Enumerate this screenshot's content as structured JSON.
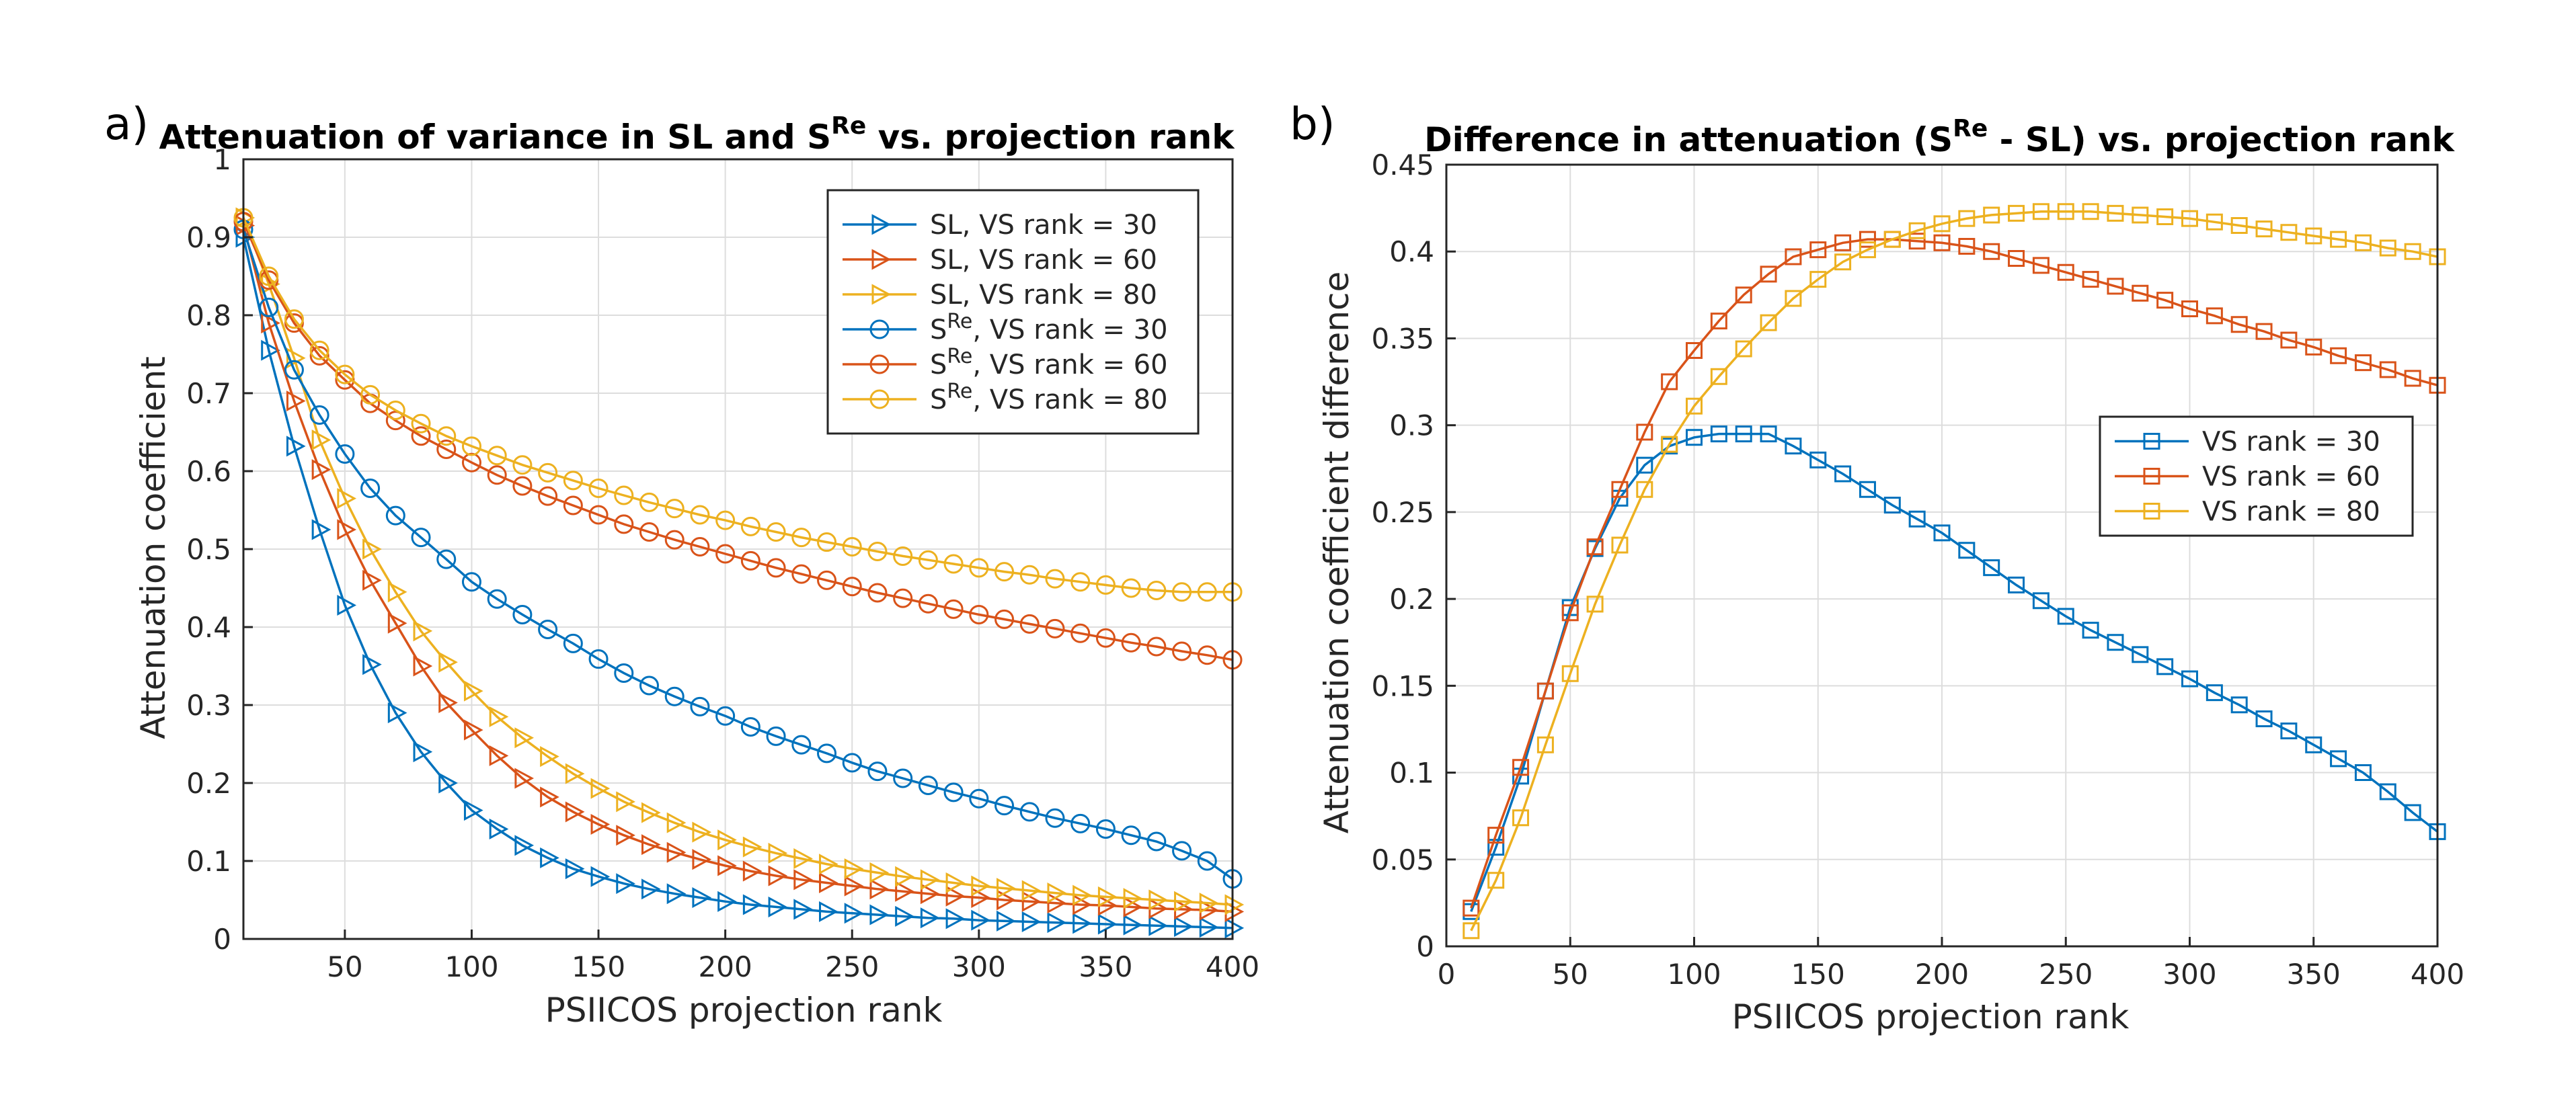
{
  "colors": {
    "blue": "#0072BD",
    "orange": "#D95319",
    "yellow": "#EDB120"
  },
  "panels": [
    {
      "letter": "a)"
    },
    {
      "letter": "b)"
    }
  ],
  "chart_data": [
    {
      "type": "line",
      "title_main": "Attenuation of variance in SL and S",
      "title_sup": "Re",
      "title_tail": " vs. projection rank",
      "xlabel": "PSIICOS projection rank",
      "ylabel": "Attenuation coefficient",
      "xlim": [
        10,
        400
      ],
      "ylim": [
        0,
        1
      ],
      "xticks": [
        "50",
        "100",
        "150",
        "200",
        "250",
        "300",
        "350",
        "400"
      ],
      "yticks": [
        "0",
        "0.1",
        "0.2",
        "0.3",
        "0.4",
        "0.5",
        "0.6",
        "0.7",
        "0.8",
        "0.9",
        "1"
      ],
      "grid": true,
      "legend_position": "top-right",
      "x": [
        10,
        20,
        30,
        40,
        50,
        60,
        70,
        80,
        90,
        100,
        110,
        120,
        130,
        140,
        150,
        160,
        170,
        180,
        190,
        200,
        210,
        220,
        230,
        240,
        250,
        260,
        270,
        280,
        290,
        300,
        310,
        320,
        330,
        340,
        350,
        360,
        370,
        380,
        390,
        400
      ],
      "series": [
        {
          "name": "SL, VS rank = 30",
          "label_main": "SL, VS rank = 30",
          "label_sup": "",
          "label_tail": "",
          "color": "#0072BD",
          "marker": "triangle-right",
          "values": [
            0.9,
            0.755,
            0.632,
            0.525,
            0.428,
            0.352,
            0.29,
            0.24,
            0.2,
            0.165,
            0.141,
            0.12,
            0.104,
            0.09,
            0.08,
            0.071,
            0.064,
            0.058,
            0.053,
            0.048,
            0.044,
            0.041,
            0.038,
            0.035,
            0.033,
            0.031,
            0.029,
            0.027,
            0.026,
            0.024,
            0.023,
            0.022,
            0.021,
            0.02,
            0.019,
            0.018,
            0.017,
            0.016,
            0.015,
            0.014
          ]
        },
        {
          "name": "SL, VS rank = 60",
          "label_main": "SL, VS rank = 60",
          "label_sup": "",
          "label_tail": "",
          "color": "#D95319",
          "marker": "triangle-right",
          "values": [
            0.915,
            0.79,
            0.69,
            0.602,
            0.525,
            0.46,
            0.405,
            0.35,
            0.303,
            0.268,
            0.235,
            0.206,
            0.182,
            0.163,
            0.147,
            0.133,
            0.121,
            0.111,
            0.102,
            0.094,
            0.087,
            0.081,
            0.076,
            0.072,
            0.068,
            0.064,
            0.061,
            0.058,
            0.055,
            0.053,
            0.05,
            0.048,
            0.046,
            0.044,
            0.043,
            0.041,
            0.039,
            0.038,
            0.037,
            0.035
          ]
        },
        {
          "name": "SL, VS rank = 80",
          "label_main": "SL, VS rank = 80",
          "label_sup": "",
          "label_tail": "",
          "color": "#EDB120",
          "marker": "triangle-right",
          "values": [
            0.925,
            0.84,
            0.745,
            0.64,
            0.565,
            0.5,
            0.445,
            0.395,
            0.355,
            0.318,
            0.285,
            0.258,
            0.234,
            0.212,
            0.193,
            0.176,
            0.162,
            0.149,
            0.137,
            0.127,
            0.118,
            0.11,
            0.103,
            0.096,
            0.09,
            0.085,
            0.08,
            0.076,
            0.072,
            0.068,
            0.065,
            0.062,
            0.059,
            0.056,
            0.054,
            0.052,
            0.05,
            0.048,
            0.046,
            0.044
          ]
        },
        {
          "name": "S^Re, VS rank = 30",
          "label_main": "S",
          "label_sup": "Re",
          "label_tail": ", VS rank = 30",
          "color": "#0072BD",
          "marker": "circle",
          "values": [
            0.91,
            0.81,
            0.73,
            0.672,
            0.622,
            0.578,
            0.543,
            0.515,
            0.487,
            0.458,
            0.436,
            0.416,
            0.397,
            0.379,
            0.359,
            0.341,
            0.325,
            0.311,
            0.298,
            0.286,
            0.272,
            0.26,
            0.249,
            0.238,
            0.226,
            0.215,
            0.206,
            0.197,
            0.188,
            0.18,
            0.171,
            0.163,
            0.155,
            0.148,
            0.141,
            0.133,
            0.125,
            0.113,
            0.1,
            0.077
          ]
        },
        {
          "name": "S^Re, VS rank = 60",
          "label_main": "S",
          "label_sup": "Re",
          "label_tail": ", VS rank = 60",
          "color": "#D95319",
          "marker": "circle",
          "values": [
            0.92,
            0.845,
            0.79,
            0.748,
            0.717,
            0.687,
            0.665,
            0.645,
            0.628,
            0.611,
            0.595,
            0.581,
            0.568,
            0.556,
            0.544,
            0.532,
            0.522,
            0.512,
            0.503,
            0.494,
            0.485,
            0.476,
            0.468,
            0.46,
            0.452,
            0.444,
            0.437,
            0.43,
            0.423,
            0.416,
            0.41,
            0.404,
            0.398,
            0.392,
            0.386,
            0.38,
            0.375,
            0.369,
            0.364,
            0.358
          ]
        },
        {
          "name": "S^Re, VS rank = 80",
          "label_main": "S",
          "label_sup": "Re",
          "label_tail": ", VS rank = 80",
          "color": "#EDB120",
          "marker": "circle",
          "values": [
            0.925,
            0.85,
            0.795,
            0.755,
            0.724,
            0.698,
            0.678,
            0.661,
            0.645,
            0.632,
            0.62,
            0.608,
            0.598,
            0.588,
            0.578,
            0.569,
            0.56,
            0.552,
            0.544,
            0.537,
            0.529,
            0.522,
            0.515,
            0.509,
            0.503,
            0.497,
            0.491,
            0.486,
            0.481,
            0.476,
            0.471,
            0.467,
            0.462,
            0.458,
            0.454,
            0.45,
            0.447,
            0.445,
            0.445,
            0.445
          ]
        }
      ]
    },
    {
      "type": "line",
      "title_main": "Difference in attenuation (S",
      "title_sup": "Re",
      "title_tail": " - SL) vs. projection rank",
      "xlabel": "PSIICOS projection rank",
      "ylabel": "Attenuation coefficient difference",
      "xlim": [
        0,
        400
      ],
      "ylim": [
        0,
        0.45
      ],
      "xticks": [
        "0",
        "50",
        "100",
        "150",
        "200",
        "250",
        "300",
        "350",
        "400"
      ],
      "yticks": [
        "0",
        "0.05",
        "0.1",
        "0.15",
        "0.2",
        "0.25",
        "0.3",
        "0.35",
        "0.4",
        "0.45"
      ],
      "grid": true,
      "legend_position": "right",
      "x": [
        10,
        20,
        30,
        40,
        50,
        60,
        70,
        80,
        90,
        100,
        110,
        120,
        130,
        140,
        150,
        160,
        170,
        180,
        190,
        200,
        210,
        220,
        230,
        240,
        250,
        260,
        270,
        280,
        290,
        300,
        310,
        320,
        330,
        340,
        350,
        360,
        370,
        380,
        390,
        400
      ],
      "series": [
        {
          "name": "VS rank = 30",
          "label_main": "VS rank = 30",
          "label_sup": "",
          "label_tail": "",
          "color": "#0072BD",
          "marker": "square",
          "values": [
            0.02,
            0.057,
            0.098,
            0.147,
            0.195,
            0.229,
            0.258,
            0.277,
            0.288,
            0.293,
            0.295,
            0.295,
            0.295,
            0.288,
            0.28,
            0.272,
            0.263,
            0.254,
            0.246,
            0.238,
            0.228,
            0.218,
            0.208,
            0.199,
            0.19,
            0.182,
            0.175,
            0.168,
            0.161,
            0.154,
            0.146,
            0.139,
            0.131,
            0.124,
            0.116,
            0.108,
            0.1,
            0.089,
            0.077,
            0.066
          ]
        },
        {
          "name": "VS rank = 60",
          "label_main": "VS rank = 60",
          "label_sup": "",
          "label_tail": "",
          "color": "#D95319",
          "marker": "square",
          "values": [
            0.022,
            0.064,
            0.103,
            0.147,
            0.192,
            0.23,
            0.263,
            0.296,
            0.325,
            0.343,
            0.36,
            0.375,
            0.387,
            0.397,
            0.401,
            0.405,
            0.407,
            0.407,
            0.406,
            0.405,
            0.403,
            0.4,
            0.396,
            0.392,
            0.388,
            0.384,
            0.38,
            0.376,
            0.372,
            0.367,
            0.363,
            0.358,
            0.354,
            0.349,
            0.345,
            0.34,
            0.336,
            0.332,
            0.327,
            0.323
          ]
        },
        {
          "name": "VS rank = 80",
          "label_main": "VS rank = 80",
          "label_sup": "",
          "label_tail": "",
          "color": "#EDB120",
          "marker": "square",
          "values": [
            0.009,
            0.038,
            0.074,
            0.116,
            0.157,
            0.197,
            0.231,
            0.263,
            0.289,
            0.311,
            0.328,
            0.344,
            0.359,
            0.373,
            0.384,
            0.394,
            0.401,
            0.407,
            0.412,
            0.416,
            0.419,
            0.421,
            0.422,
            0.423,
            0.423,
            0.423,
            0.422,
            0.421,
            0.42,
            0.419,
            0.417,
            0.415,
            0.413,
            0.411,
            0.409,
            0.407,
            0.405,
            0.402,
            0.4,
            0.397
          ]
        }
      ]
    }
  ]
}
